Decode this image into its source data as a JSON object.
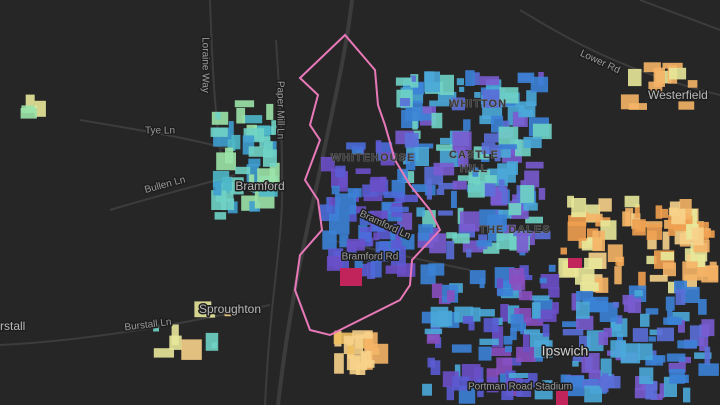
{
  "map": {
    "places": [
      "Bramford",
      "Sproughton",
      "rstall",
      "Ipswich",
      "Westerfield"
    ],
    "districts": [
      "WHITTON",
      "WHITEHOUSE",
      "CASTLE",
      "HILL",
      "THE DALES"
    ],
    "roads": [
      "Loraine Way",
      "Paper Mill Ln",
      "Tye Ln",
      "Bullen Ln",
      "Burstall Ln",
      "Bramford Ln",
      "Bramford Rd",
      "Lower Rd",
      "Portman Road Stadium"
    ]
  }
}
